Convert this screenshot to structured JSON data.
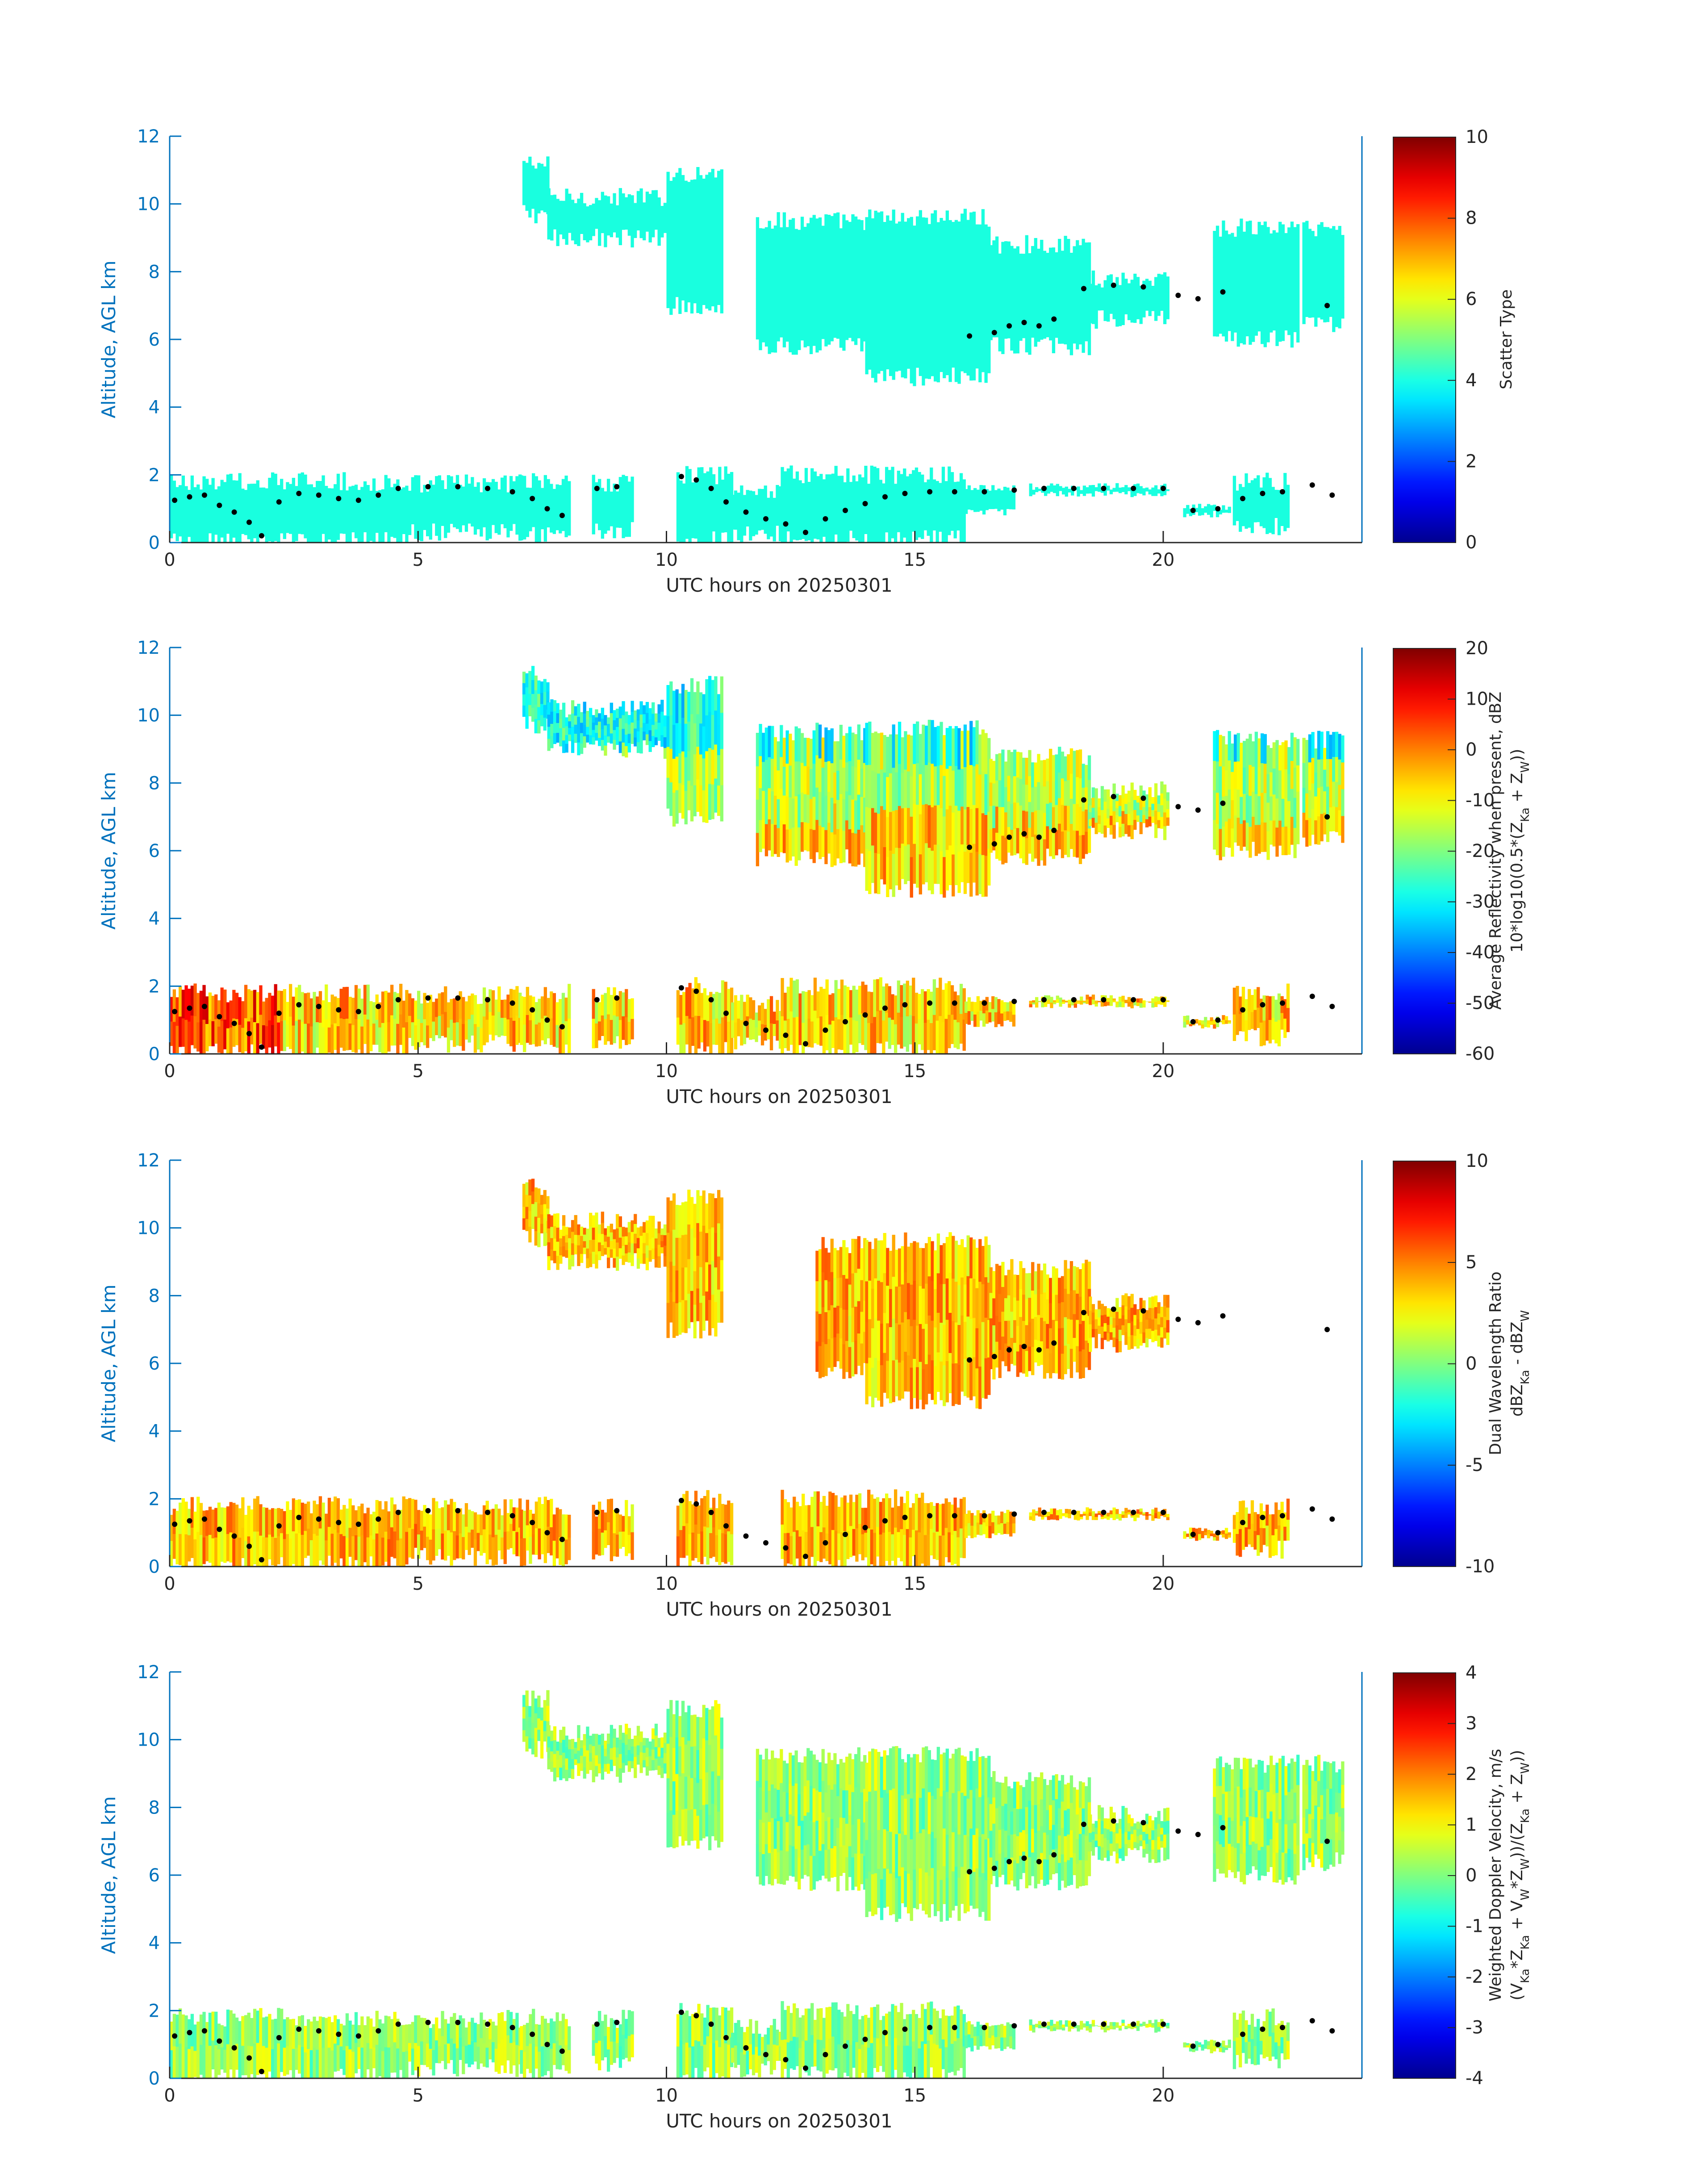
{
  "colors": {
    "axis_blue": "#0072bd",
    "text_dark": "#262626",
    "jet_stops": [
      "#00008f",
      "#0000ff",
      "#00ffff",
      "#ffff00",
      "#ff0000",
      "#800000"
    ],
    "scatter_type_fill": "#19ffdf",
    "marker": "#000000"
  },
  "chart_data": [
    {
      "type": "heatmap",
      "xlabel": "UTC hours on 20250301",
      "ylabel": "Altitude, AGL km",
      "xlim": [
        0,
        24
      ],
      "ylim": [
        0,
        12
      ],
      "xticks": [
        0,
        5,
        10,
        15,
        20
      ],
      "yticks": [
        0,
        2,
        4,
        6,
        8,
        10,
        12
      ],
      "colorbar": {
        "label_lines": [
          "Scatter Type"
        ],
        "range": [
          0,
          10
        ],
        "ticks": [
          0,
          2,
          4,
          6,
          8,
          10
        ],
        "colormap": "jet"
      },
      "field": "scatter_type",
      "dominant_value": 4.5
    },
    {
      "type": "heatmap",
      "xlabel": "UTC hours on 20250301",
      "ylabel": "Altitude, AGL km",
      "xlim": [
        0,
        24
      ],
      "ylim": [
        0,
        12
      ],
      "xticks": [
        0,
        5,
        10,
        15,
        20
      ],
      "yticks": [
        0,
        2,
        4,
        6,
        8,
        10,
        12
      ],
      "colorbar": {
        "label_lines": [
          "Average Reflectivity when present, dBZ",
          "10*log10(0.5*(Z_Ka + Z_W))"
        ],
        "range": [
          -60,
          20
        ],
        "ticks": [
          -60,
          -50,
          -40,
          -30,
          -20,
          -10,
          0,
          10,
          20
        ],
        "colormap": "jet"
      },
      "field": "reflectivity"
    },
    {
      "type": "heatmap",
      "xlabel": "UTC hours on 20250301",
      "ylabel": "Altitude, AGL km",
      "xlim": [
        0,
        24
      ],
      "ylim": [
        0,
        12
      ],
      "xticks": [
        0,
        5,
        10,
        15,
        20
      ],
      "yticks": [
        0,
        2,
        4,
        6,
        8,
        10,
        12
      ],
      "colorbar": {
        "label_lines": [
          "Dual Wavelength Ratio",
          "dBZ_Ka - dBZ_W"
        ],
        "range": [
          -10,
          10
        ],
        "ticks": [
          -10,
          -5,
          0,
          5,
          10
        ],
        "colormap": "jet"
      },
      "field": "dwr"
    },
    {
      "type": "heatmap",
      "xlabel": "UTC hours on 20250301",
      "ylabel": "Altitude, AGL km",
      "xlim": [
        0,
        24
      ],
      "ylim": [
        0,
        12
      ],
      "xticks": [
        0,
        5,
        10,
        15,
        20
      ],
      "yticks": [
        0,
        2,
        4,
        6,
        8,
        10,
        12
      ],
      "colorbar": {
        "label_lines": [
          "Weighted Doppler Velocity, m/s",
          "(V_Ka*Z_Ka + V_W*Z_W))/(Z_Ka + Z_W))"
        ],
        "range": [
          -4,
          4
        ],
        "ticks": [
          -4,
          -3,
          -2,
          -1,
          0,
          1,
          2,
          3,
          4
        ],
        "colormap": "jet"
      },
      "field": "doppler_velocity"
    }
  ],
  "cloud_regions": {
    "low_cloud_segments": [
      {
        "x0": 0.0,
        "x1": 4.75,
        "top": 1.8,
        "bottom": 0.05
      },
      {
        "x0": 4.8,
        "x1": 7.05,
        "top": 1.75,
        "bottom": 0.3
      },
      {
        "x0": 7.05,
        "x1": 8.05,
        "top": 1.8,
        "bottom": 0.2
      },
      {
        "x0": 8.5,
        "x1": 9.3,
        "top": 1.75,
        "bottom": 0.4
      },
      {
        "x0": 10.2,
        "x1": 11.3,
        "top": 2.0,
        "bottom": 0.1
      },
      {
        "x0": 11.3,
        "x1": 12.3,
        "top": 1.5,
        "bottom": 0.3
      },
      {
        "x0": 12.3,
        "x1": 16.0,
        "top": 2.0,
        "bottom": 0.1
      },
      {
        "x0": 16.0,
        "x1": 17.0,
        "top": 1.6,
        "bottom": 0.9
      },
      {
        "x0": 17.3,
        "x1": 20.1,
        "top": 1.65,
        "bottom": 1.45
      },
      {
        "x0": 20.4,
        "x1": 21.3,
        "top": 1.05,
        "bottom": 0.85
      },
      {
        "x0": 21.4,
        "x1": 22.5,
        "top": 1.8,
        "bottom": 0.5
      }
    ],
    "upper_cloud_regions": [
      {
        "x0": 7.1,
        "x1": 7.6,
        "top": 11.2,
        "bottom": 9.7
      },
      {
        "x0": 7.6,
        "x1": 10.0,
        "top": 10.2,
        "bottom": 9.0
      },
      {
        "x0": 10.0,
        "x1": 11.1,
        "top": 10.9,
        "bottom": 7.0
      },
      {
        "x0": 11.8,
        "x1": 14.0,
        "top": 9.5,
        "bottom": 5.8
      },
      {
        "x0": 14.0,
        "x1": 16.5,
        "top": 9.6,
        "bottom": 4.9
      },
      {
        "x0": 16.5,
        "x1": 18.5,
        "top": 8.8,
        "bottom": 5.8
      },
      {
        "x0": 18.5,
        "x1": 20.1,
        "top": 7.8,
        "bottom": 6.6
      },
      {
        "x0": 21.0,
        "x1": 22.7,
        "top": 9.3,
        "bottom": 6.0
      },
      {
        "x0": 22.8,
        "x1": 23.6,
        "top": 9.3,
        "bottom": 6.4
      }
    ],
    "cloud_base_markers": [
      [
        0.1,
        1.25
      ],
      [
        0.4,
        1.35
      ],
      [
        0.7,
        1.4
      ],
      [
        1.0,
        1.1
      ],
      [
        1.3,
        0.9
      ],
      [
        1.6,
        0.6
      ],
      [
        1.85,
        0.2
      ],
      [
        2.2,
        1.2
      ],
      [
        2.6,
        1.45
      ],
      [
        3.0,
        1.4
      ],
      [
        3.4,
        1.3
      ],
      [
        3.8,
        1.25
      ],
      [
        4.2,
        1.4
      ],
      [
        4.6,
        1.6
      ],
      [
        5.2,
        1.65
      ],
      [
        5.8,
        1.65
      ],
      [
        6.4,
        1.6
      ],
      [
        6.9,
        1.5
      ],
      [
        7.3,
        1.3
      ],
      [
        7.6,
        1.0
      ],
      [
        7.9,
        0.8
      ],
      [
        8.6,
        1.6
      ],
      [
        9.0,
        1.65
      ],
      [
        10.3,
        1.95
      ],
      [
        10.6,
        1.85
      ],
      [
        10.9,
        1.6
      ],
      [
        11.2,
        1.2
      ],
      [
        11.6,
        0.9
      ],
      [
        12.0,
        0.7
      ],
      [
        12.4,
        0.55
      ],
      [
        12.8,
        0.3
      ],
      [
        13.2,
        0.7
      ],
      [
        13.6,
        0.95
      ],
      [
        14.0,
        1.15
      ],
      [
        14.4,
        1.35
      ],
      [
        14.8,
        1.45
      ],
      [
        15.3,
        1.5
      ],
      [
        15.8,
        1.5
      ],
      [
        16.4,
        1.5
      ],
      [
        17.0,
        1.55
      ],
      [
        17.6,
        1.6
      ],
      [
        18.2,
        1.6
      ],
      [
        18.8,
        1.6
      ],
      [
        19.4,
        1.6
      ],
      [
        20.0,
        1.6
      ],
      [
        20.6,
        0.95
      ],
      [
        21.1,
        1.0
      ],
      [
        21.6,
        1.3
      ],
      [
        22.0,
        1.45
      ],
      [
        22.4,
        1.5
      ],
      [
        23.0,
        1.7
      ],
      [
        23.4,
        1.4
      ],
      [
        16.1,
        6.1
      ],
      [
        16.6,
        6.2
      ],
      [
        16.9,
        6.4
      ],
      [
        17.2,
        6.5
      ],
      [
        17.5,
        6.4
      ],
      [
        17.8,
        6.6
      ],
      [
        18.4,
        7.5
      ],
      [
        19.0,
        7.6
      ],
      [
        19.6,
        7.55
      ],
      [
        20.3,
        7.3
      ],
      [
        20.7,
        7.2
      ],
      [
        21.2,
        7.4
      ],
      [
        23.3,
        7.0
      ]
    ]
  }
}
